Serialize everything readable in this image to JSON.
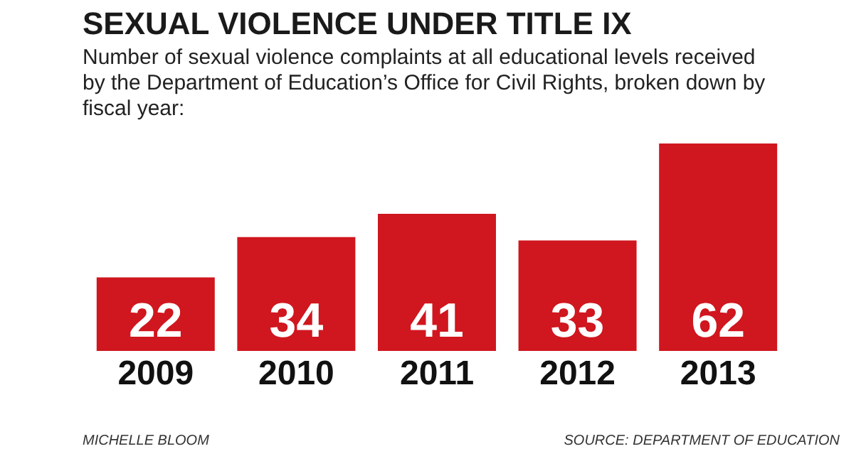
{
  "chart_data": {
    "type": "bar",
    "title": "SEXUAL VIOLENCE UNDER TITLE IX",
    "subtitle": "Number of sexual violence complaints at all educational levels received by the Department of Education’s Office for Civil Rights, broken down by fiscal year:",
    "categories": [
      "2009",
      "2010",
      "2011",
      "2012",
      "2013"
    ],
    "values": [
      22,
      34,
      41,
      33,
      62
    ],
    "color": "#d0161e",
    "data_labels": true,
    "annotations": [
      "MICHELLE BLOOM",
      "SOURCE: DEPARTMENT OF EDUCATION"
    ]
  }
}
